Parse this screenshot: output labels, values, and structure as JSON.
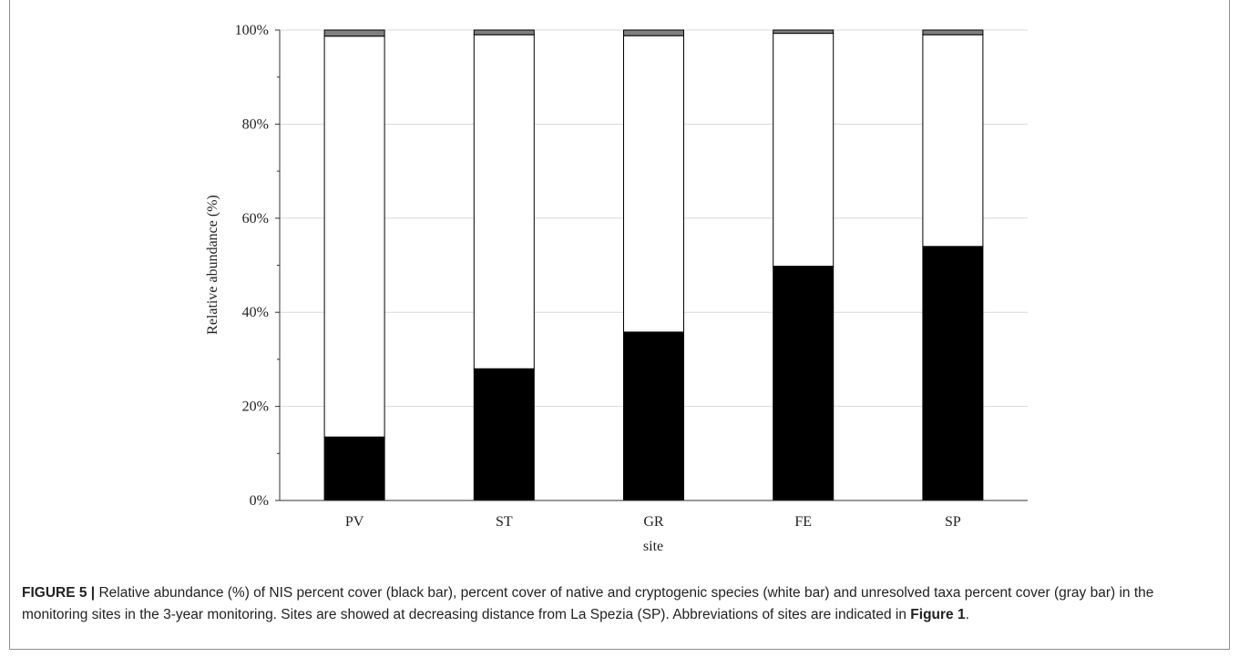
{
  "chart_data": {
    "type": "bar",
    "stacked": true,
    "categories": [
      "PV",
      "ST",
      "GR",
      "FE",
      "SP"
    ],
    "series": [
      {
        "name": "NIS",
        "color": "#000000",
        "values": [
          13.5,
          28.0,
          35.8,
          49.8,
          54.0
        ]
      },
      {
        "name": "native and cryptogenic",
        "color": "#ffffff",
        "values": [
          85.2,
          71.0,
          63.0,
          49.5,
          45.0
        ]
      },
      {
        "name": "unresolved taxa",
        "color": "#808080",
        "values": [
          1.3,
          1.0,
          1.2,
          0.7,
          1.0
        ]
      }
    ],
    "xlabel": "site",
    "ylabel": "Relative abundance (%)",
    "ylim": [
      0,
      100
    ],
    "yticks": [
      "0%",
      "20%",
      "40%",
      "60%",
      "80%",
      "100%"
    ],
    "grid": true
  },
  "caption": {
    "label": "FIGURE 5 |",
    "text": " Relative abundance (%) of NIS percent cover (black bar), percent cover of native and cryptogenic species (white bar) and unresolved taxa percent cover (gray bar) in the monitoring sites in the 3-year monitoring. Sites are showed at decreasing distance from La Spezia (SP). Abbreviations of sites are indicated in ",
    "ref": "Figure 1",
    "end": "."
  }
}
